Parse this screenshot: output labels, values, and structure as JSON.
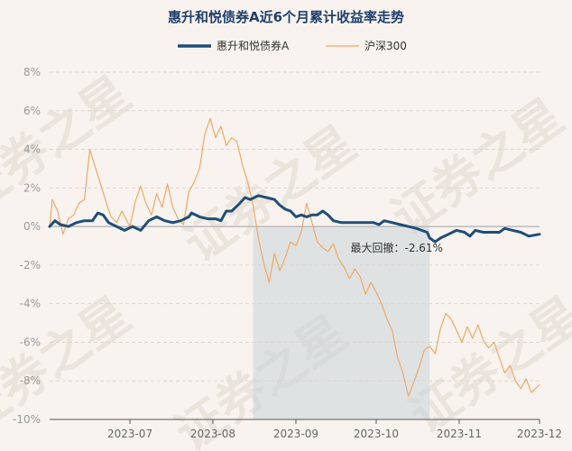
{
  "watermark": "证券之星",
  "chart_data": {
    "type": "line",
    "title": "惠升和悦债券A近6个月累计收益率走势",
    "xlabel": "",
    "ylabel": "",
    "y_unit": "%",
    "ylim": [
      -10,
      8
    ],
    "y_ticks": [
      {
        "value": 8,
        "label": "8%"
      },
      {
        "value": 6,
        "label": "6%"
      },
      {
        "value": 4,
        "label": "4%"
      },
      {
        "value": 2,
        "label": "2%"
      },
      {
        "value": 0,
        "label": "0%"
      },
      {
        "value": -2,
        "label": "-2%"
      },
      {
        "value": -4,
        "label": "-4%"
      },
      {
        "value": -6,
        "label": "-6%"
      },
      {
        "value": -8,
        "label": "-8%"
      },
      {
        "value": -10,
        "label": "-10%"
      }
    ],
    "xlim": [
      "2023-06-01",
      "2023-12-01"
    ],
    "x_ticks": [
      {
        "date": "2023-07-01",
        "label": "2023-07"
      },
      {
        "date": "2023-08-01",
        "label": "2023-08"
      },
      {
        "date": "2023-09-01",
        "label": "2023-09"
      },
      {
        "date": "2023-10-01",
        "label": "2023-10"
      },
      {
        "date": "2023-11-01",
        "label": "2023-11"
      },
      {
        "date": "2023-12-01",
        "label": "2023-12"
      }
    ],
    "legend_position": "top",
    "grid": "horizontal-dashed",
    "series": [
      {
        "name": "惠升和悦债券A",
        "color": "#1f4e79",
        "points": [
          [
            "2023-06-01",
            0.0
          ],
          [
            "2023-06-03",
            0.3
          ],
          [
            "2023-06-05",
            0.1
          ],
          [
            "2023-06-08",
            0.0
          ],
          [
            "2023-06-11",
            0.2
          ],
          [
            "2023-06-14",
            0.3
          ],
          [
            "2023-06-17",
            0.3
          ],
          [
            "2023-06-19",
            0.7
          ],
          [
            "2023-06-21",
            0.6
          ],
          [
            "2023-06-23",
            0.2
          ],
          [
            "2023-06-26",
            0.0
          ],
          [
            "2023-06-29",
            -0.2
          ],
          [
            "2023-07-02",
            0.0
          ],
          [
            "2023-07-05",
            -0.2
          ],
          [
            "2023-07-08",
            0.3
          ],
          [
            "2023-07-11",
            0.5
          ],
          [
            "2023-07-14",
            0.3
          ],
          [
            "2023-07-17",
            0.2
          ],
          [
            "2023-07-20",
            0.3
          ],
          [
            "2023-07-23",
            0.5
          ],
          [
            "2023-07-24",
            0.7
          ],
          [
            "2023-07-27",
            0.5
          ],
          [
            "2023-07-30",
            0.4
          ],
          [
            "2023-08-02",
            0.4
          ],
          [
            "2023-08-04",
            0.3
          ],
          [
            "2023-08-06",
            0.8
          ],
          [
            "2023-08-08",
            0.8
          ],
          [
            "2023-08-11",
            1.2
          ],
          [
            "2023-08-13",
            1.5
          ],
          [
            "2023-08-15",
            1.4
          ],
          [
            "2023-08-18",
            1.6
          ],
          [
            "2023-08-21",
            1.5
          ],
          [
            "2023-08-24",
            1.4
          ],
          [
            "2023-08-26",
            1.1
          ],
          [
            "2023-08-28",
            0.9
          ],
          [
            "2023-08-30",
            0.8
          ],
          [
            "2023-09-01",
            0.5
          ],
          [
            "2023-09-03",
            0.6
          ],
          [
            "2023-09-05",
            0.5
          ],
          [
            "2023-09-07",
            0.6
          ],
          [
            "2023-09-09",
            0.6
          ],
          [
            "2023-09-11",
            0.8
          ],
          [
            "2023-09-13",
            0.6
          ],
          [
            "2023-09-15",
            0.3
          ],
          [
            "2023-09-18",
            0.2
          ],
          [
            "2023-09-21",
            0.2
          ],
          [
            "2023-09-24",
            0.2
          ],
          [
            "2023-09-27",
            0.2
          ],
          [
            "2023-09-30",
            0.2
          ],
          [
            "2023-10-02",
            0.1
          ],
          [
            "2023-10-04",
            0.3
          ],
          [
            "2023-10-07",
            0.2
          ],
          [
            "2023-10-10",
            0.1
          ],
          [
            "2023-10-13",
            0.0
          ],
          [
            "2023-10-16",
            -0.1
          ],
          [
            "2023-10-18",
            -0.2
          ],
          [
            "2023-10-20",
            -0.3
          ],
          [
            "2023-10-21",
            -0.6
          ],
          [
            "2023-10-23",
            -0.8
          ],
          [
            "2023-10-25",
            -0.6
          ],
          [
            "2023-10-28",
            -0.4
          ],
          [
            "2023-10-31",
            -0.2
          ],
          [
            "2023-11-03",
            -0.3
          ],
          [
            "2023-11-05",
            -0.5
          ],
          [
            "2023-11-07",
            -0.2
          ],
          [
            "2023-11-10",
            -0.3
          ],
          [
            "2023-11-13",
            -0.3
          ],
          [
            "2023-11-16",
            -0.3
          ],
          [
            "2023-11-18",
            -0.1
          ],
          [
            "2023-11-21",
            -0.2
          ],
          [
            "2023-11-24",
            -0.3
          ],
          [
            "2023-11-27",
            -0.5
          ],
          [
            "2023-12-01",
            -0.4
          ]
        ]
      },
      {
        "name": "沪深300",
        "color": "#f0a868",
        "points": [
          [
            "2023-06-01",
            0.0
          ],
          [
            "2023-06-02",
            1.4
          ],
          [
            "2023-06-04",
            0.8
          ],
          [
            "2023-06-06",
            -0.4
          ],
          [
            "2023-06-08",
            0.4
          ],
          [
            "2023-06-10",
            0.6
          ],
          [
            "2023-06-12",
            1.2
          ],
          [
            "2023-06-14",
            1.4
          ],
          [
            "2023-06-16",
            4.0
          ],
          [
            "2023-06-18",
            3.1
          ],
          [
            "2023-06-20",
            2.2
          ],
          [
            "2023-06-22",
            1.3
          ],
          [
            "2023-06-24",
            0.5
          ],
          [
            "2023-06-26",
            0.2
          ],
          [
            "2023-06-28",
            0.8
          ],
          [
            "2023-07-01",
            0.0
          ],
          [
            "2023-07-03",
            1.3
          ],
          [
            "2023-07-05",
            2.1
          ],
          [
            "2023-07-07",
            1.2
          ],
          [
            "2023-07-09",
            0.6
          ],
          [
            "2023-07-11",
            1.7
          ],
          [
            "2023-07-13",
            1.0
          ],
          [
            "2023-07-15",
            2.2
          ],
          [
            "2023-07-17",
            1.0
          ],
          [
            "2023-07-19",
            0.4
          ],
          [
            "2023-07-21",
            0.1
          ],
          [
            "2023-07-23",
            1.8
          ],
          [
            "2023-07-25",
            2.3
          ],
          [
            "2023-07-27",
            3.0
          ],
          [
            "2023-07-29",
            4.8
          ],
          [
            "2023-07-31",
            5.6
          ],
          [
            "2023-08-02",
            4.6
          ],
          [
            "2023-08-04",
            5.2
          ],
          [
            "2023-08-06",
            4.2
          ],
          [
            "2023-08-08",
            4.6
          ],
          [
            "2023-08-10",
            4.4
          ],
          [
            "2023-08-12",
            3.2
          ],
          [
            "2023-08-14",
            2.3
          ],
          [
            "2023-08-16",
            1.1
          ],
          [
            "2023-08-18",
            -0.6
          ],
          [
            "2023-08-20",
            -1.9
          ],
          [
            "2023-08-22",
            -2.9
          ],
          [
            "2023-08-24",
            -1.4
          ],
          [
            "2023-08-26",
            -2.3
          ],
          [
            "2023-08-28",
            -1.6
          ],
          [
            "2023-08-30",
            -0.8
          ],
          [
            "2023-09-01",
            -1.0
          ],
          [
            "2023-09-03",
            -0.3
          ],
          [
            "2023-09-05",
            1.2
          ],
          [
            "2023-09-07",
            0.2
          ],
          [
            "2023-09-09",
            -0.8
          ],
          [
            "2023-09-11",
            -1.1
          ],
          [
            "2023-09-13",
            -1.3
          ],
          [
            "2023-09-15",
            -0.9
          ],
          [
            "2023-09-17",
            -1.7
          ],
          [
            "2023-09-19",
            -2.1
          ],
          [
            "2023-09-21",
            -2.7
          ],
          [
            "2023-09-23",
            -2.2
          ],
          [
            "2023-09-25",
            -2.6
          ],
          [
            "2023-09-27",
            -3.5
          ],
          [
            "2023-09-29",
            -2.9
          ],
          [
            "2023-10-01",
            -3.4
          ],
          [
            "2023-10-03",
            -4.0
          ],
          [
            "2023-10-05",
            -4.8
          ],
          [
            "2023-10-07",
            -5.4
          ],
          [
            "2023-10-09",
            -6.8
          ],
          [
            "2023-10-11",
            -7.6
          ],
          [
            "2023-10-13",
            -8.8
          ],
          [
            "2023-10-15",
            -8.1
          ],
          [
            "2023-10-17",
            -7.3
          ],
          [
            "2023-10-19",
            -6.4
          ],
          [
            "2023-10-21",
            -6.2
          ],
          [
            "2023-10-23",
            -6.6
          ],
          [
            "2023-10-25",
            -5.3
          ],
          [
            "2023-10-27",
            -4.5
          ],
          [
            "2023-10-29",
            -4.8
          ],
          [
            "2023-10-31",
            -5.4
          ],
          [
            "2023-11-02",
            -6.0
          ],
          [
            "2023-11-04",
            -5.2
          ],
          [
            "2023-11-06",
            -5.8
          ],
          [
            "2023-11-08",
            -5.1
          ],
          [
            "2023-11-10",
            -5.9
          ],
          [
            "2023-11-12",
            -6.3
          ],
          [
            "2023-11-14",
            -6.0
          ],
          [
            "2023-11-16",
            -6.8
          ],
          [
            "2023-11-18",
            -7.6
          ],
          [
            "2023-11-20",
            -7.2
          ],
          [
            "2023-11-22",
            -8.0
          ],
          [
            "2023-11-24",
            -8.4
          ],
          [
            "2023-11-26",
            -7.9
          ],
          [
            "2023-11-28",
            -8.6
          ],
          [
            "2023-12-01",
            -8.2
          ]
        ]
      }
    ],
    "max_drawdown": {
      "label": "最大回撤：-2.61%",
      "start": "2023-08-16",
      "end": "2023-10-21"
    }
  }
}
